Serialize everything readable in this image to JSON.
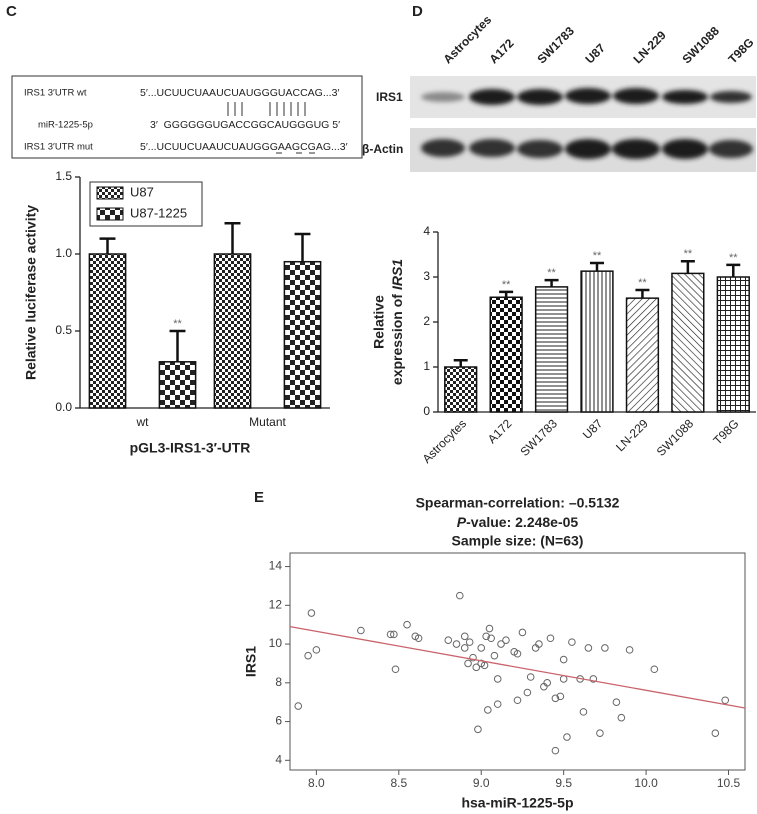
{
  "panel_labels": [
    "C",
    "D",
    "E"
  ],
  "sequence_box": {
    "rows": [
      {
        "label": "IRS1 3′UTR wt",
        "seq": "5′...UCUUCUAAUCUAUGGGUACCAG...3′"
      },
      {
        "label": "miR-1225-5p",
        "seq": "3′  GGGGGGUGACCGGCAUGGGUG 5′"
      },
      {
        "label": "IRS1 3′UTR mut",
        "seq": "5′...UCUUCUAAUCUAUGGGAAGCGAG...3′"
      }
    ]
  },
  "blot": {
    "lanes": [
      "Astrocytes",
      "A172",
      "SW1783",
      "U87",
      "LN-229",
      "SW1088",
      "T98G"
    ],
    "rows": [
      "IRS1",
      "β-Actin"
    ]
  },
  "chart_data": [
    {
      "type": "bar",
      "y_label": "Relative luciferase activity",
      "x_label": "pGL3-IRS1-3′-UTR",
      "categories": [
        "wt",
        "Mutant"
      ],
      "series": [
        {
          "name": "U87",
          "pattern": "check-small",
          "values": [
            1.0,
            1.0
          ],
          "errors": [
            0.1,
            0.2
          ],
          "significance": [
            null,
            null
          ]
        },
        {
          "name": "U87-1225",
          "pattern": "check-large",
          "values": [
            0.3,
            0.95
          ],
          "errors": [
            0.2,
            0.18
          ],
          "significance": [
            "**",
            null
          ]
        }
      ],
      "ylim": [
        0,
        1.5
      ],
      "yticks": [
        {
          "value": 0,
          "label": "0.0"
        },
        0.5,
        {
          "value": 1.0,
          "label": "1.0"
        },
        1.5
      ],
      "legend": "upper left"
    },
    {
      "type": "bar",
      "y_label": {
        "line1": "Relative",
        "line2": "expression of",
        "gene": "IRS1"
      },
      "categories": [
        "Astrocytes",
        "A172",
        "SW1783",
        "U87",
        "LN-229",
        "SW1088",
        "T98G"
      ],
      "values": [
        1.0,
        2.55,
        2.78,
        3.13,
        2.53,
        3.08,
        3.0
      ],
      "errors": [
        0.15,
        0.12,
        0.15,
        0.18,
        0.18,
        0.27,
        0.27
      ],
      "significance": [
        null,
        "**",
        "**",
        "**",
        "**",
        "**",
        "**"
      ],
      "patterns": [
        "check-small",
        "check-dense",
        "hlines",
        "vlines",
        "diag1",
        "diag2",
        "grid"
      ],
      "x_tick_rotation": -45,
      "ylim": [
        0,
        4
      ],
      "yticks": [
        0,
        1,
        2,
        3,
        4
      ]
    },
    {
      "type": "scatter",
      "title": [
        "Spearman-correlation: –0.5132",
        {
          "italic": "P",
          "rest": "-value: 2.248e-05"
        },
        "Sample size: (N=63)"
      ],
      "x_label": "hsa-miR-1225-5p",
      "y_label": "IRS1",
      "xlim": [
        7.84,
        10.6
      ],
      "ylim": [
        3.5,
        14.7
      ],
      "xticks": [
        {
          "value": 8.0,
          "label": "8.0"
        },
        8.5,
        {
          "value": 9.0,
          "label": "9.0"
        },
        9.5,
        {
          "value": 10.0,
          "label": "10.0"
        },
        10.5
      ],
      "yticks": [
        4,
        6,
        8,
        10,
        12,
        14
      ],
      "color": "#666666",
      "fit_color": "#c9636b",
      "fit": {
        "x": [
          7.84,
          10.6
        ],
        "y": [
          10.9,
          6.7
        ]
      },
      "x": [
        7.89,
        7.95,
        7.97,
        8.0,
        8.27,
        8.45,
        8.47,
        8.48,
        8.55,
        8.6,
        8.62,
        8.8,
        8.85,
        8.87,
        8.9,
        8.9,
        8.92,
        8.93,
        8.95,
        8.97,
        8.98,
        9.0,
        9.0,
        9.02,
        9.03,
        9.04,
        9.05,
        9.06,
        9.08,
        9.1,
        9.1,
        9.12,
        9.15,
        9.2,
        9.22,
        9.22,
        9.25,
        9.28,
        9.3,
        9.33,
        9.35,
        9.38,
        9.4,
        9.42,
        9.45,
        9.45,
        9.48,
        9.5,
        9.5,
        9.52,
        9.55,
        9.6,
        9.62,
        9.65,
        9.68,
        9.72,
        9.75,
        9.82,
        9.85,
        9.9,
        10.05,
        10.42,
        10.48
      ],
      "y": [
        6.8,
        9.4,
        11.6,
        9.7,
        10.7,
        10.5,
        10.5,
        8.7,
        11.0,
        10.4,
        10.3,
        10.2,
        10.0,
        12.5,
        10.4,
        9.8,
        9.0,
        10.1,
        9.3,
        8.8,
        5.6,
        9.8,
        9.0,
        8.9,
        10.4,
        6.6,
        10.8,
        10.3,
        9.4,
        8.2,
        6.9,
        10.0,
        10.2,
        9.6,
        9.5,
        7.1,
        10.6,
        7.5,
        8.3,
        9.8,
        10.0,
        7.8,
        8.0,
        10.3,
        4.5,
        7.2,
        7.3,
        9.2,
        8.2,
        5.2,
        10.1,
        8.2,
        6.5,
        9.8,
        8.2,
        5.4,
        9.8,
        7.0,
        6.2,
        9.7,
        8.7,
        5.4,
        7.1
      ]
    }
  ]
}
